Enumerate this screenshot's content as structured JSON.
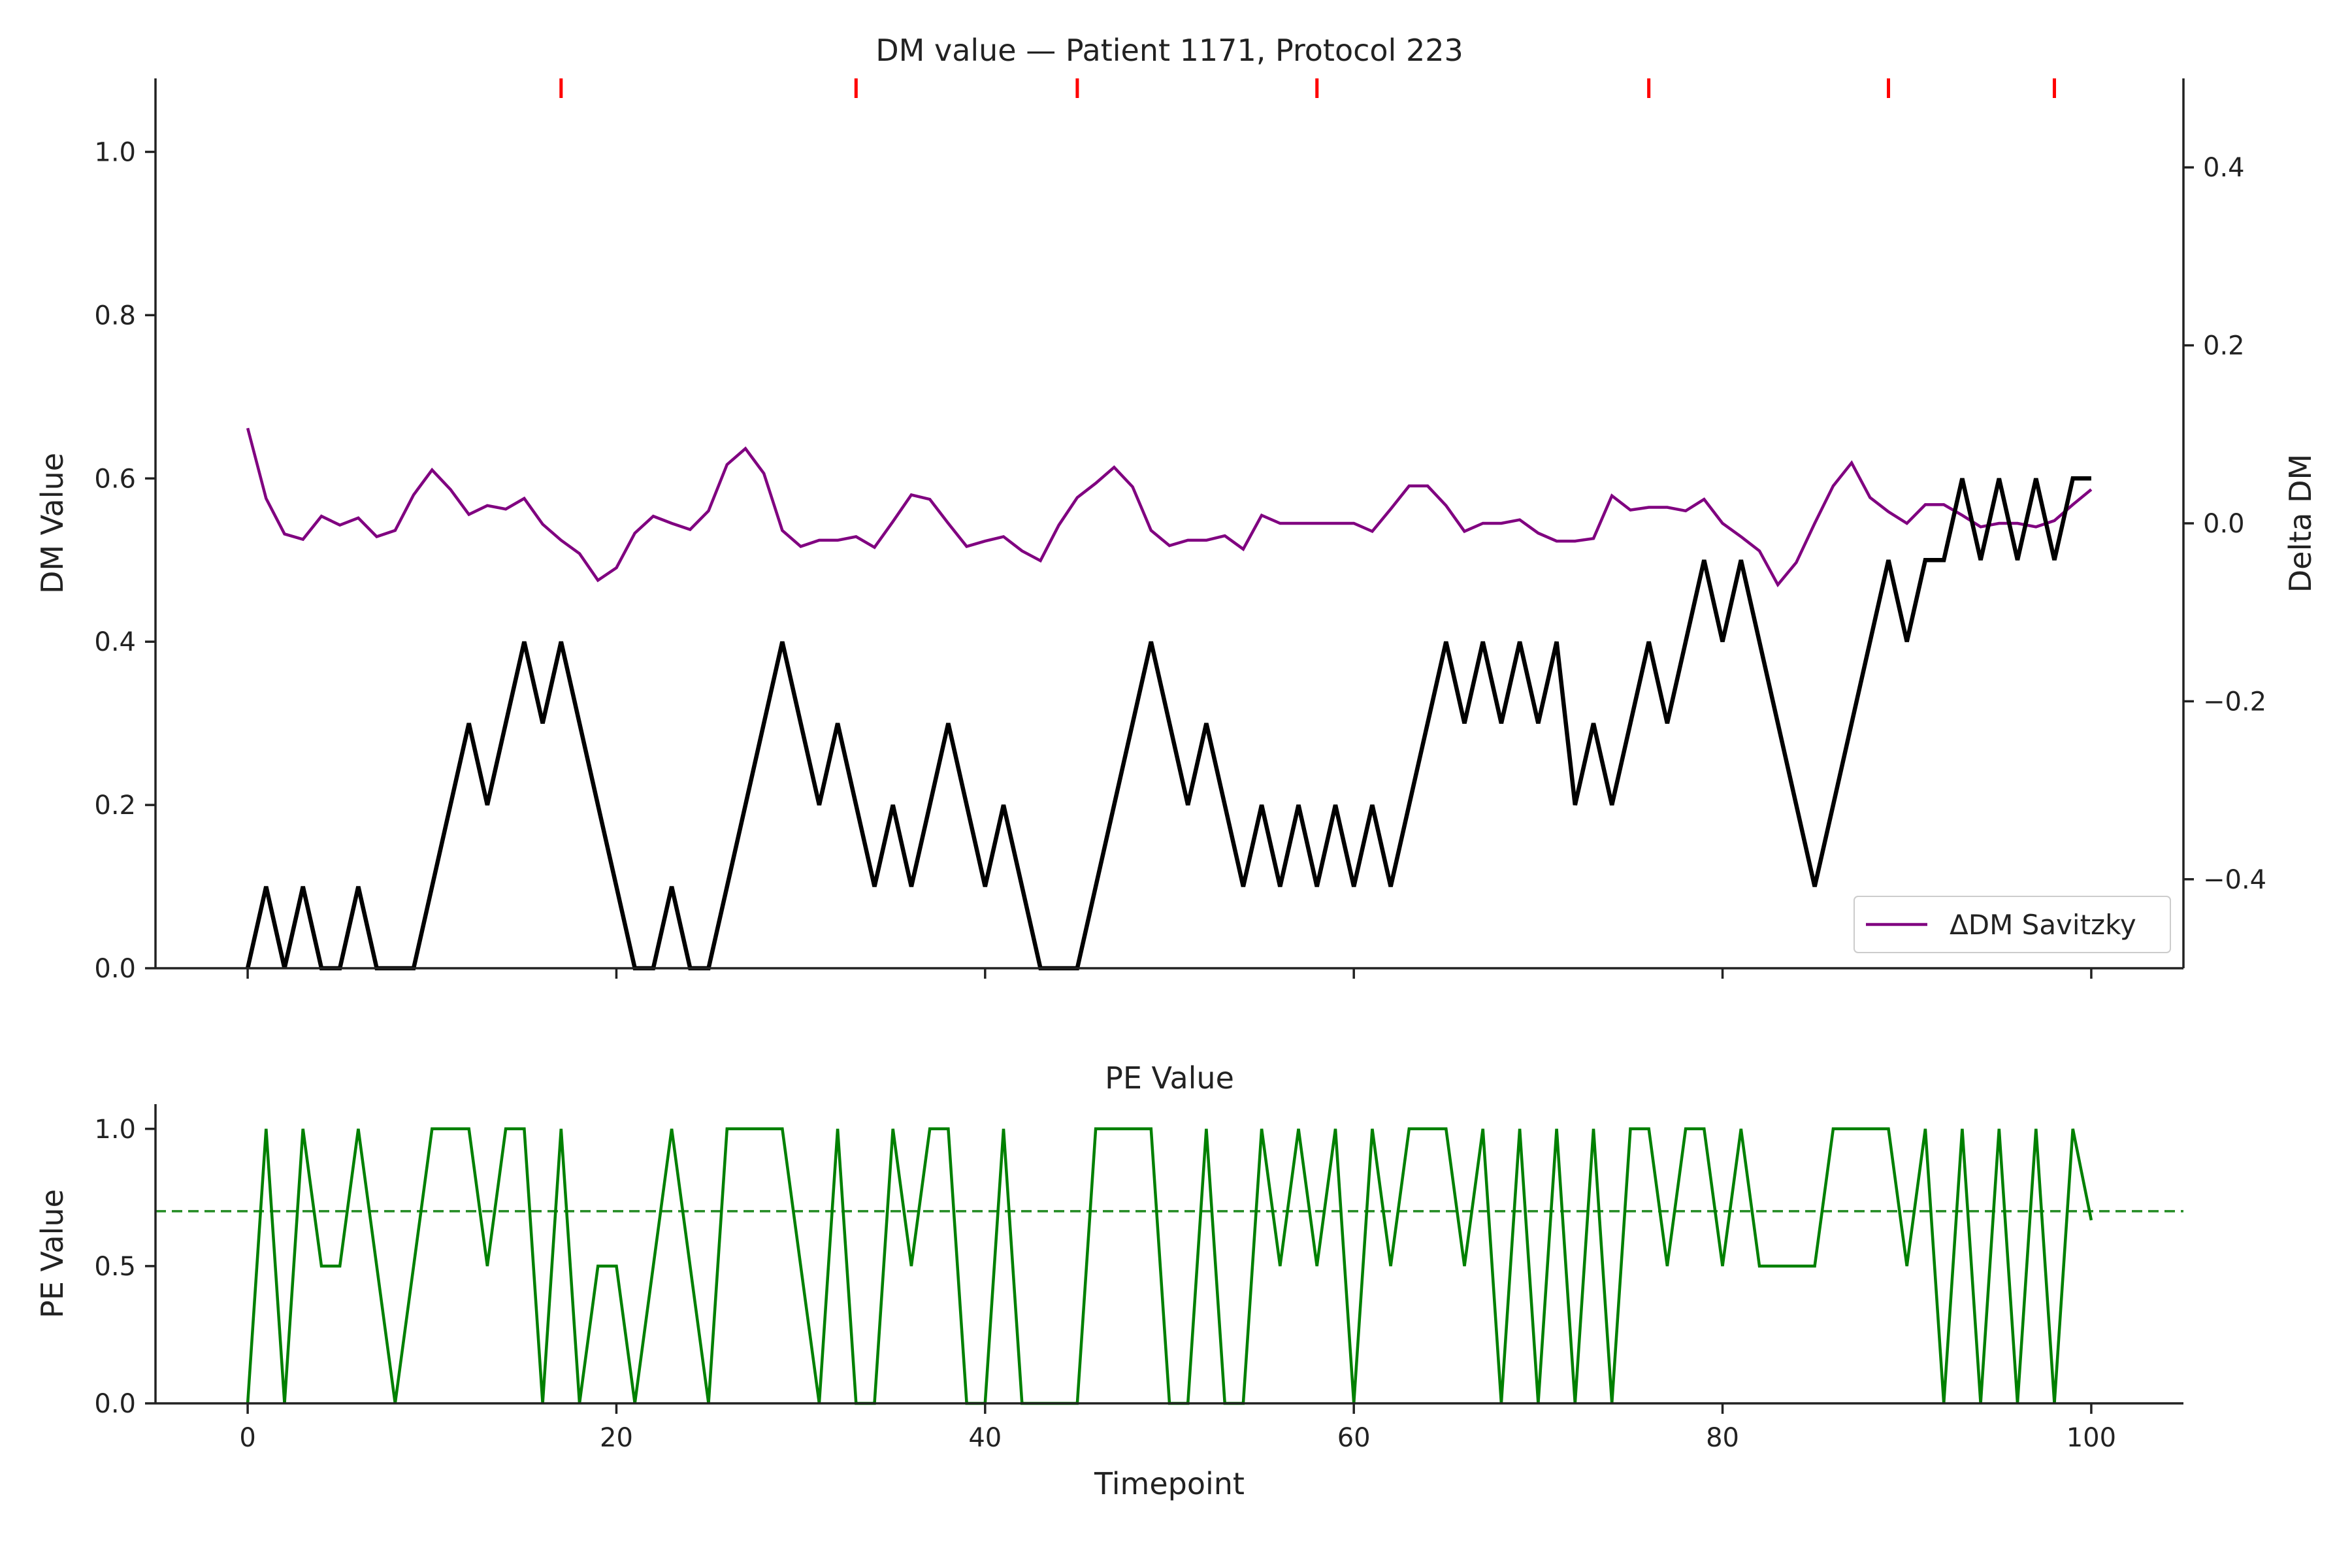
{
  "chart_data": [
    {
      "type": "line",
      "title": "DM value — Patient 1171, Protocol 223",
      "xlabel": "",
      "ylabel": "DM Value",
      "y2label": "Delta DM",
      "xlim": [
        -5,
        105
      ],
      "ylim": [
        0,
        1.09
      ],
      "y2lim": [
        -0.5,
        0.5
      ],
      "xticks": [
        0,
        20,
        40,
        60,
        80,
        100
      ],
      "yticks": [
        0.0,
        0.2,
        0.4,
        0.6,
        0.8,
        1.0
      ],
      "ytick_labels": [
        "0.0",
        "0.2",
        "0.4",
        "0.6",
        "0.8",
        "1.0"
      ],
      "y2ticks": [
        -0.4,
        -0.2,
        0.0,
        0.2,
        0.4
      ],
      "y2tick_labels": [
        "−0.4",
        "−0.2",
        "0.0",
        "0.2",
        "0.4"
      ],
      "grid": false,
      "legend_position": "lower-right",
      "series": [
        {
          "name": "",
          "axis": "left",
          "color": "#000000",
          "x": [
            0,
            1,
            2,
            3,
            4,
            5,
            6,
            7,
            8,
            9,
            10,
            11,
            12,
            13,
            14,
            15,
            16,
            17,
            18,
            19,
            20,
            21,
            22,
            23,
            24,
            25,
            26,
            27,
            28,
            29,
            30,
            31,
            32,
            33,
            34,
            35,
            36,
            37,
            38,
            39,
            40,
            41,
            42,
            43,
            44,
            45,
            46,
            47,
            48,
            49,
            50,
            51,
            52,
            53,
            54,
            55,
            56,
            57,
            58,
            59,
            60,
            61,
            62,
            63,
            64,
            65,
            66,
            67,
            68,
            69,
            70,
            71,
            72,
            73,
            74,
            75,
            76,
            77,
            78,
            79,
            80,
            81,
            82,
            83,
            84,
            85,
            86,
            87,
            88,
            89,
            90,
            91,
            92,
            93,
            94,
            95,
            96,
            97,
            98,
            99,
            100
          ],
          "y": [
            0,
            0.1,
            0,
            0.1,
            0,
            0,
            0.1,
            0,
            0,
            0,
            0.1,
            0.2,
            0.3,
            0.2,
            0.3,
            0.4,
            0.3,
            0.4,
            0.3,
            0.2,
            0.1,
            0,
            0,
            0.1,
            0,
            0,
            0.1,
            0.2,
            0.3,
            0.4,
            0.3,
            0.2,
            0.3,
            0.2,
            0.1,
            0.2,
            0.1,
            0.2,
            0.3,
            0.2,
            0.1,
            0.2,
            0.1,
            0,
            0,
            0,
            0.1,
            0.2,
            0.3,
            0.4,
            0.3,
            0.2,
            0.3,
            0.2,
            0.1,
            0.2,
            0.1,
            0.2,
            0.1,
            0.2,
            0.1,
            0.2,
            0.1,
            0.2,
            0.3,
            0.4,
            0.3,
            0.4,
            0.3,
            0.4,
            0.3,
            0.4,
            0.2,
            0.3,
            0.2,
            0.3,
            0.4,
            0.3,
            0.4,
            0.5,
            0.4,
            0.5,
            0.4,
            0.3,
            0.2,
            0.1,
            0.2,
            0.3,
            0.4,
            0.5,
            0.4,
            0.5,
            0.5,
            0.6,
            0.5,
            0.6,
            0.5,
            0.6,
            0.5,
            0.6,
            0.6
          ]
        },
        {
          "name": "ΔDM Savitzky",
          "axis": "right",
          "color": "#800080",
          "x": [
            0,
            1,
            2,
            3,
            4,
            5,
            6,
            7,
            8,
            9,
            10,
            11,
            12,
            13,
            14,
            15,
            16,
            17,
            18,
            19,
            20,
            21,
            22,
            23,
            24,
            25,
            26,
            27,
            28,
            29,
            30,
            31,
            32,
            33,
            34,
            35,
            36,
            37,
            38,
            39,
            40,
            41,
            42,
            43,
            44,
            45,
            46,
            47,
            48,
            49,
            50,
            51,
            52,
            53,
            54,
            55,
            56,
            57,
            58,
            59,
            60,
            61,
            62,
            63,
            64,
            65,
            66,
            67,
            68,
            69,
            70,
            71,
            72,
            73,
            74,
            75,
            76,
            77,
            78,
            79,
            80,
            81,
            82,
            83,
            84,
            85,
            86,
            87,
            88,
            89,
            90,
            91,
            92,
            93,
            94,
            95,
            96,
            97,
            98,
            99,
            100
          ],
          "y": [
            0.107,
            0.028,
            -0.012,
            -0.018,
            0.008,
            -0.002,
            0.006,
            -0.015,
            -0.008,
            0.032,
            0.06,
            0.038,
            0.01,
            0.02,
            0.016,
            0.028,
            -0.001,
            -0.019,
            -0.034,
            -0.064,
            -0.05,
            -0.011,
            0.008,
            0,
            -0.007,
            0.014,
            0.066,
            0.084,
            0.056,
            -0.008,
            -0.026,
            -0.019,
            -0.019,
            -0.015,
            -0.027,
            0.002,
            0.032,
            0.027,
            0,
            -0.026,
            -0.02,
            -0.015,
            -0.031,
            -0.042,
            -0.002,
            0.029,
            0.045,
            0.063,
            0.041,
            -0.008,
            -0.025,
            -0.019,
            -0.019,
            -0.014,
            -0.029,
            0.009,
            0,
            0,
            0,
            0,
            0,
            -0.009,
            0.016,
            0.042,
            0.042,
            0.02,
            -0.009,
            0,
            0,
            0.004,
            -0.011,
            -0.02,
            -0.02,
            -0.017,
            0.031,
            0.015,
            0.018,
            0.018,
            0.014,
            0.027,
            0,
            -0.015,
            -0.031,
            -0.069,
            -0.044,
            0,
            0.042,
            0.068,
            0.029,
            0.013,
            0,
            0.021,
            0.021,
            0.009,
            -0.004,
            0,
            0,
            -0.004,
            0.003,
            0.021,
            0.038
          ]
        }
      ],
      "event_markers": {
        "color": "#ff0000",
        "x": [
          17,
          33,
          45,
          58,
          76,
          89,
          98
        ]
      }
    },
    {
      "type": "line",
      "title": "PE Value",
      "xlabel": "Timepoint",
      "ylabel": "PE Value",
      "xlim": [
        -5,
        105
      ],
      "ylim": [
        0,
        1.09
      ],
      "xticks": [
        0,
        20,
        40,
        60,
        80,
        100
      ],
      "xtick_labels": [
        "0",
        "20",
        "40",
        "60",
        "80",
        "100"
      ],
      "yticks": [
        0.0,
        0.5,
        1.0
      ],
      "ytick_labels": [
        "0.0",
        "0.5",
        "1.0"
      ],
      "grid": false,
      "threshold": {
        "y": 0.7,
        "style": "dashed",
        "color": "#228B22"
      },
      "series": [
        {
          "name": "",
          "color": "#008000",
          "x": [
            0,
            1,
            2,
            3,
            4,
            5,
            6,
            7,
            8,
            9,
            10,
            11,
            12,
            13,
            14,
            15,
            16,
            17,
            18,
            19,
            20,
            21,
            22,
            23,
            24,
            25,
            26,
            27,
            28,
            29,
            30,
            31,
            32,
            33,
            34,
            35,
            36,
            37,
            38,
            39,
            40,
            41,
            42,
            43,
            44,
            45,
            46,
            47,
            48,
            49,
            50,
            51,
            52,
            53,
            54,
            55,
            56,
            57,
            58,
            59,
            60,
            61,
            62,
            63,
            64,
            65,
            66,
            67,
            68,
            69,
            70,
            71,
            72,
            73,
            74,
            75,
            76,
            77,
            78,
            79,
            80,
            81,
            82,
            83,
            84,
            85,
            86,
            87,
            88,
            89,
            90,
            91,
            92,
            93,
            94,
            95,
            96,
            97,
            98,
            99,
            100
          ],
          "y": [
            0,
            1,
            0,
            1,
            0.5,
            0.5,
            1,
            0.5,
            0,
            0.5,
            1,
            1,
            1,
            0.5,
            1,
            1,
            0,
            1,
            0,
            0.5,
            0.5,
            0,
            0.5,
            1,
            0.5,
            0,
            1,
            1,
            1,
            1,
            0.5,
            0,
            1,
            0,
            0,
            1,
            0.5,
            1,
            1,
            0,
            0,
            1,
            0,
            0,
            0,
            0,
            1,
            1,
            1,
            1,
            0,
            0,
            1,
            0,
            0,
            1,
            0.5,
            1,
            0.5,
            1,
            0,
            1,
            0.5,
            1,
            1,
            1,
            0.5,
            1,
            0,
            1,
            0,
            1,
            0,
            1,
            0,
            1,
            1,
            0.5,
            1,
            1,
            0.5,
            1,
            0.5,
            0.5,
            0.5,
            0.5,
            1,
            1,
            1,
            1,
            0.5,
            1,
            0,
            1,
            0,
            1,
            0,
            1,
            0,
            1,
            0.667
          ]
        }
      ]
    }
  ]
}
